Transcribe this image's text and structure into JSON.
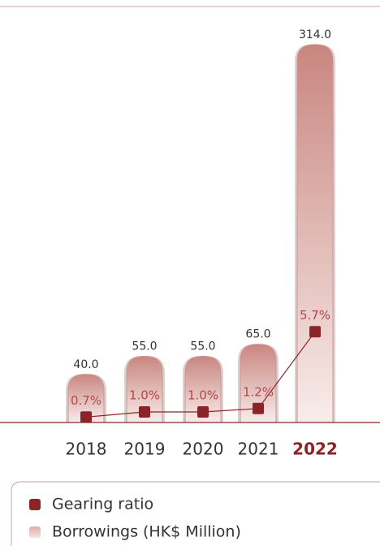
{
  "chart_data": {
    "type": "bar",
    "categories": [
      "2018",
      "2019",
      "2020",
      "2021",
      "2022"
    ],
    "highlight_index": 4,
    "ylim": [
      0,
      320
    ],
    "y2lim": [
      0,
      24
    ],
    "series": [
      {
        "name": "Gearing ratio",
        "type": "line",
        "axis": "y2",
        "color": "#8b2328",
        "values": [
          0.7,
          1.0,
          1.0,
          1.2,
          5.7
        ],
        "value_labels": [
          "0.7%",
          "1.0%",
          "1.0%",
          "1.2%",
          "5.7%"
        ]
      },
      {
        "name": "Borrowings (HK$ Million)",
        "type": "bar",
        "color": "#cf938d",
        "values": [
          40,
          55,
          55,
          65,
          314
        ],
        "value_labels": [
          "40.0",
          "55.0",
          "55.0",
          "65.0",
          "314.0"
        ]
      }
    ]
  }
}
